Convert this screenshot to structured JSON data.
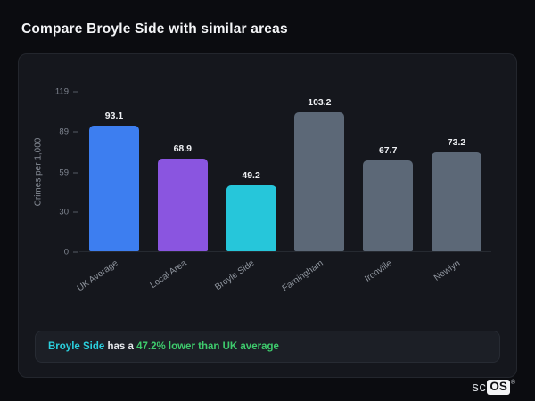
{
  "page": {
    "title": "Compare Broyle Side with similar areas"
  },
  "chart_data": {
    "type": "bar",
    "title": "Compare Broyle Side with similar areas",
    "xlabel": "",
    "ylabel": "Crimes per 1,000",
    "categories": [
      "UK Average",
      "Local Area",
      "Broyle Side",
      "Farningham",
      "Ironville",
      "Newlyn"
    ],
    "values": [
      93.1,
      68.9,
      49.2,
      103.2,
      67.7,
      73.2
    ],
    "bar_colors": [
      "#3d7ef0",
      "#8a55e0",
      "#26c6da",
      "#5c6877",
      "#5c6877",
      "#5c6877"
    ],
    "yticks": [
      0,
      30,
      59,
      89,
      119
    ],
    "ylim": [
      0,
      119
    ],
    "grid": false,
    "legend": false
  },
  "footnote": {
    "area": "Broyle Side",
    "middle": " has a ",
    "highlight": "47.2% lower than UK average"
  },
  "logo": {
    "prefix": "sc",
    "suffix": "OS",
    "registered": "®"
  },
  "colors": {
    "page_background": "#0b0c10",
    "card_background": "#15171d",
    "accent_cyan": "#2bd0de",
    "accent_green": "#3ecb6d",
    "highlight_blue": "#3d7ef0",
    "highlight_purple": "#8a55e0",
    "comparison_gray": "#5c6877"
  }
}
